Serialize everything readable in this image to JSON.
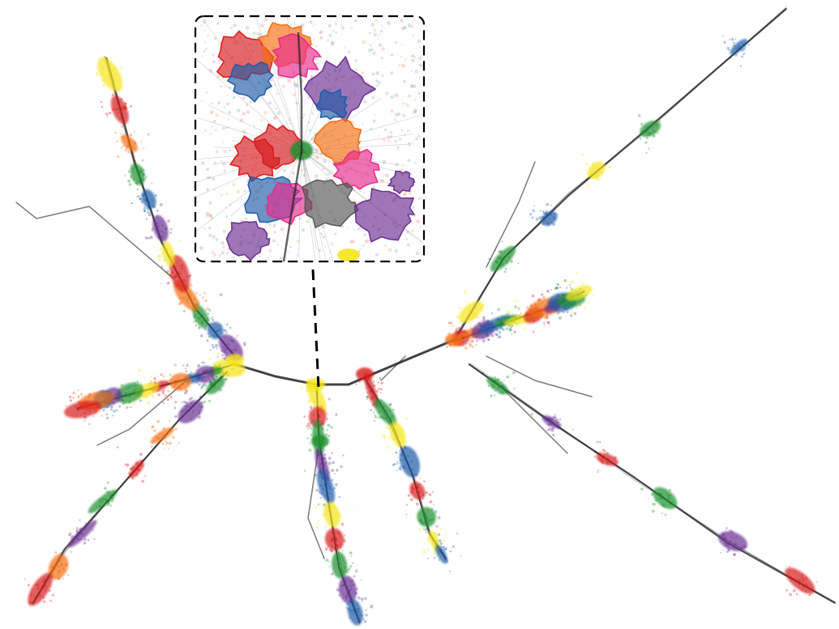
{
  "figure": {
    "background": "#ffffff",
    "edge_color": "#222222",
    "callout_border": "#000000"
  },
  "palette": {
    "red": "#d7191c",
    "orange": "#f46d0e",
    "yellow": "#f5e618",
    "green": "#1f8f2f",
    "blue": "#1f5aa6",
    "purple": "#6a2c91",
    "pink": "#e7298a",
    "gray": "#555555"
  },
  "branches": [
    {
      "name": "upper-left-arm",
      "colors": [
        "purple",
        "blue",
        "green",
        "orange",
        "red",
        "yellow"
      ]
    },
    {
      "name": "left-lower-arm",
      "colors": [
        "yellow",
        "green",
        "purple",
        "blue",
        "orange",
        "red"
      ]
    },
    {
      "name": "bottom-left-arm",
      "colors": [
        "green",
        "purple",
        "orange",
        "red"
      ]
    },
    {
      "name": "center-stem",
      "colors": [
        "yellow",
        "red",
        "green",
        "purple",
        "blue"
      ]
    },
    {
      "name": "center-right-arm",
      "colors": [
        "red",
        "green",
        "yellow",
        "blue"
      ]
    },
    {
      "name": "right-cluster",
      "colors": [
        "red",
        "orange",
        "purple",
        "blue",
        "green",
        "yellow"
      ]
    },
    {
      "name": "upper-right-arm",
      "colors": [
        "yellow",
        "green",
        "blue"
      ]
    },
    {
      "name": "lower-right-arm",
      "colors": [
        "green",
        "purple",
        "red"
      ]
    }
  ],
  "zoom_inset": {
    "region_colors": [
      "red",
      "orange",
      "pink",
      "purple",
      "blue",
      "green",
      "gray"
    ]
  }
}
